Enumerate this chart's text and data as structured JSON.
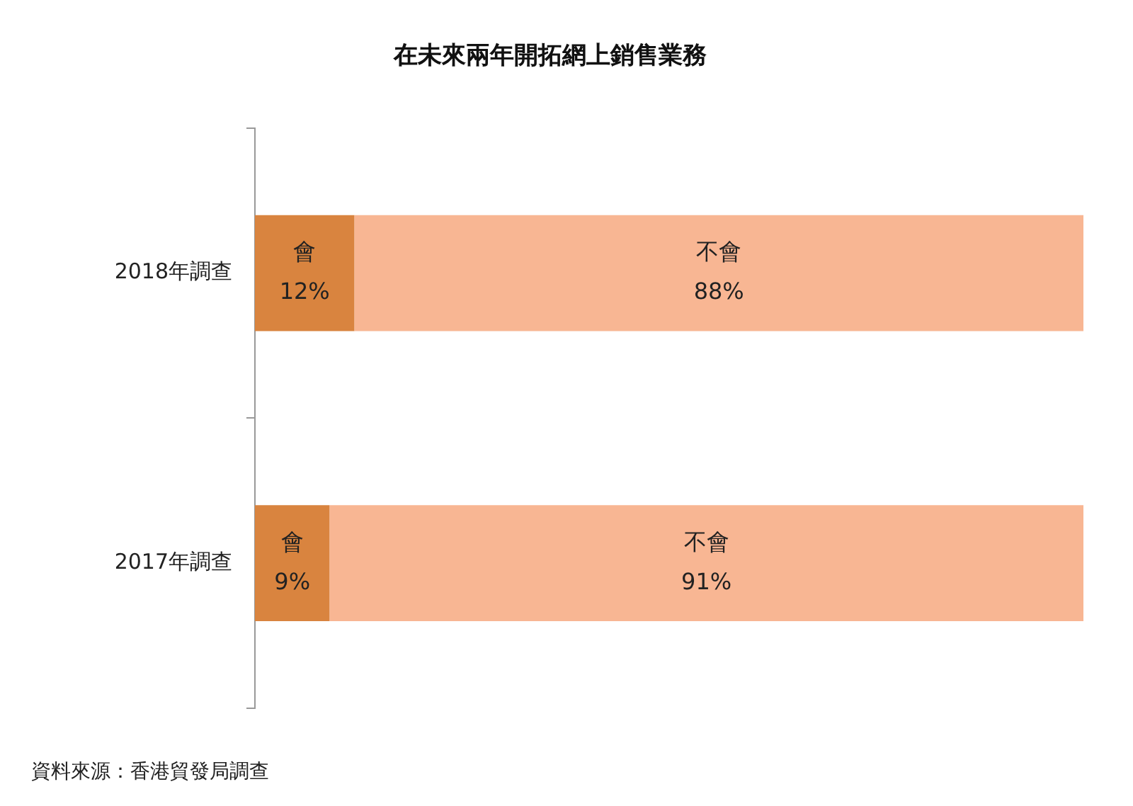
{
  "chart_data": {
    "type": "bar",
    "orientation": "horizontal",
    "stacked": true,
    "title": "在未來兩年開拓網上銷售業務",
    "categories": [
      "2018年調查",
      "2017年調查"
    ],
    "series": [
      {
        "name": "會",
        "color": "#d9843f",
        "values": [
          12,
          9
        ],
        "value_labels": [
          "12%",
          "9%"
        ]
      },
      {
        "name": "不會",
        "color": "#f8b693",
        "values": [
          88,
          91
        ],
        "value_labels": [
          "88%",
          "91%"
        ]
      }
    ],
    "xlim": [
      0,
      100
    ],
    "tick_labels": "y",
    "legend": false,
    "annotations": [
      "資料來源：香港貿發局調查"
    ]
  }
}
